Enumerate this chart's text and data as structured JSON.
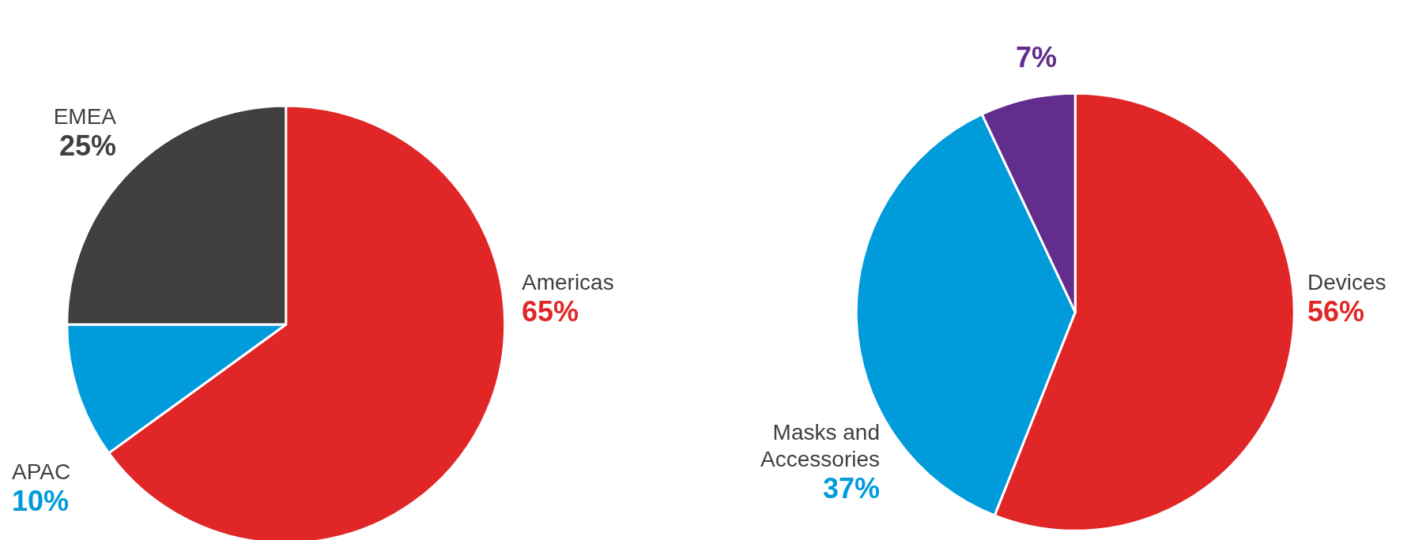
{
  "chart_data": [
    {
      "type": "pie",
      "categories": [
        "Americas",
        "APAC",
        "EMEA"
      ],
      "values": [
        65,
        10,
        25
      ],
      "value_labels": [
        "65%",
        "10%",
        "25%"
      ],
      "colors": [
        "#e02626",
        "#009bdb",
        "#404040"
      ],
      "legend": false
    },
    {
      "type": "pie",
      "categories": [
        "Devices",
        "Masks and\nAccessories",
        null
      ],
      "values": [
        56,
        37,
        7
      ],
      "value_labels": [
        "56%",
        "37%",
        "7%"
      ],
      "colors": [
        "#e02626",
        "#009bdb",
        "#622d8c"
      ],
      "legend": false
    }
  ]
}
